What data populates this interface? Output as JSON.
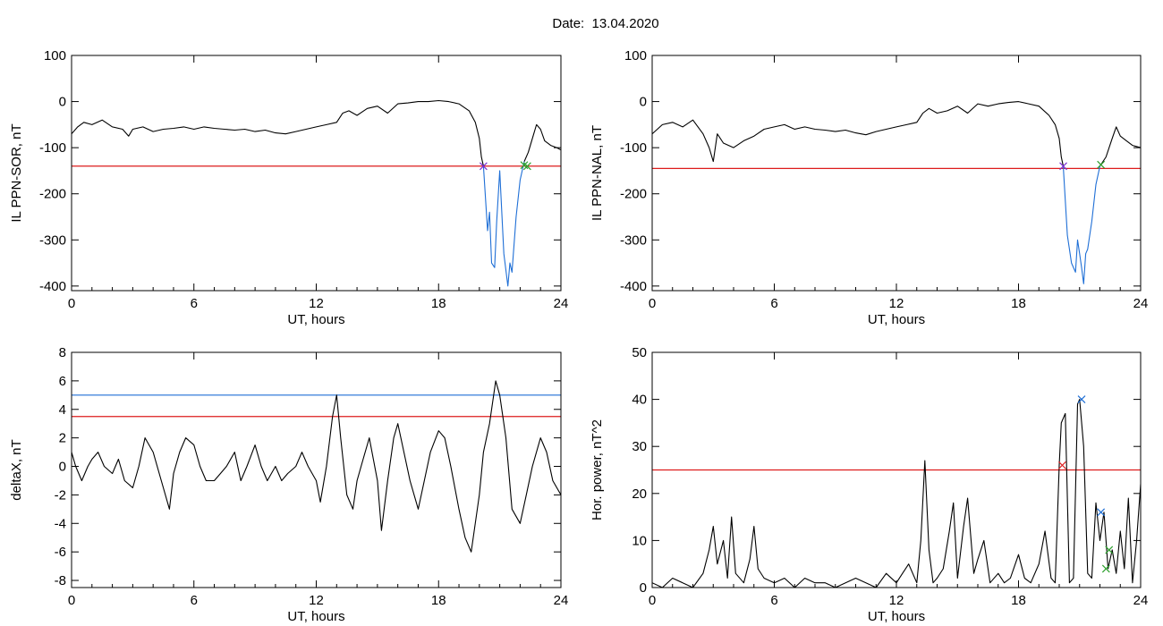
{
  "page_title": "Date:  13.04.2020",
  "colors": {
    "black": "#000000",
    "red": "#dd1c1c",
    "blue": "#1f6fd6",
    "green": "#2ca02c",
    "purple": "#7a2fd4"
  },
  "chart_data": [
    {
      "type": "line",
      "id": "sor",
      "xlabel": "UT, hours",
      "ylabel": "IL PPN-SOR, nT",
      "xlim": [
        0,
        24
      ],
      "ylim": [
        -410,
        100
      ],
      "xticks": [
        0,
        6,
        12,
        18,
        24
      ],
      "yticks": [
        100,
        0,
        -100,
        -200,
        -300,
        -400
      ],
      "threshold_lines": [
        {
          "color": "red",
          "y": -140
        }
      ],
      "series": [
        {
          "color": "black",
          "x": [
            0,
            0.3,
            0.6,
            1,
            1.5,
            2,
            2.5,
            2.8,
            3,
            3.5,
            4,
            4.5,
            5,
            5.5,
            6,
            6.5,
            7,
            7.5,
            8,
            8.5,
            9,
            9.5,
            10,
            10.5,
            11,
            11.5,
            12,
            12.5,
            13,
            13.3,
            13.6,
            14,
            14.5,
            15,
            15.5,
            16,
            16.5,
            17,
            17.5,
            18,
            18.5,
            19,
            19.5,
            19.8,
            20,
            20.1,
            20.2
          ],
          "y": [
            -70,
            -55,
            -45,
            -50,
            -40,
            -55,
            -60,
            -75,
            -60,
            -55,
            -65,
            -60,
            -58,
            -55,
            -60,
            -55,
            -58,
            -60,
            -62,
            -60,
            -65,
            -62,
            -68,
            -70,
            -65,
            -60,
            -55,
            -50,
            -45,
            -25,
            -20,
            -30,
            -15,
            -10,
            -25,
            -5,
            -3,
            0,
            0,
            2,
            0,
            -5,
            -20,
            -45,
            -80,
            -120,
            -140
          ]
        },
        {
          "color": "blue",
          "x": [
            20.2,
            20.4,
            20.5,
            20.6,
            20.75,
            20.85,
            21,
            21.2,
            21.4,
            21.5,
            21.6,
            21.8,
            22,
            22.2
          ],
          "y": [
            -140,
            -280,
            -240,
            -350,
            -360,
            -260,
            -150,
            -330,
            -400,
            -350,
            -370,
            -250,
            -170,
            -130
          ]
        },
        {
          "color": "black",
          "x": [
            22.2,
            22.4,
            22.6,
            22.8,
            23,
            23.2,
            23.5,
            23.8,
            24
          ],
          "y": [
            -130,
            -110,
            -80,
            -50,
            -60,
            -85,
            -95,
            -100,
            -105
          ]
        }
      ],
      "markers": [
        {
          "color": "purple",
          "x": 20.2,
          "y": -140
        },
        {
          "color": "green",
          "x": 22.2,
          "y": -138
        },
        {
          "color": "green",
          "x": 22.35,
          "y": -140
        }
      ]
    },
    {
      "type": "line",
      "id": "nal",
      "xlabel": "UT, hours",
      "ylabel": "IL PPN-NAL, nT",
      "xlim": [
        0,
        24
      ],
      "ylim": [
        -410,
        100
      ],
      "xticks": [
        0,
        6,
        12,
        18,
        24
      ],
      "yticks": [
        100,
        0,
        -100,
        -200,
        -300,
        -400
      ],
      "threshold_lines": [
        {
          "color": "red",
          "y": -145
        }
      ],
      "series": [
        {
          "color": "black",
          "x": [
            0,
            0.5,
            1,
            1.5,
            2,
            2.5,
            2.8,
            3,
            3.2,
            3.5,
            4,
            4.5,
            5,
            5.5,
            6,
            6.5,
            7,
            7.5,
            8,
            8.5,
            9,
            9.5,
            10,
            10.5,
            11,
            11.5,
            12,
            12.5,
            13,
            13.3,
            13.6,
            14,
            14.5,
            15,
            15.5,
            16,
            16.5,
            17,
            17.5,
            18,
            18.5,
            19,
            19.5,
            19.8,
            20,
            20.1,
            20.2
          ],
          "y": [
            -70,
            -50,
            -45,
            -55,
            -40,
            -70,
            -100,
            -130,
            -70,
            -90,
            -100,
            -85,
            -75,
            -60,
            -55,
            -50,
            -60,
            -55,
            -60,
            -62,
            -65,
            -62,
            -68,
            -72,
            -65,
            -60,
            -55,
            -50,
            -45,
            -25,
            -15,
            -25,
            -20,
            -10,
            -25,
            -5,
            -10,
            -5,
            -2,
            0,
            -5,
            -10,
            -30,
            -50,
            -80,
            -120,
            -140
          ]
        },
        {
          "color": "blue",
          "x": [
            20.2,
            20.4,
            20.6,
            20.8,
            20.9,
            21,
            21.1,
            21.2,
            21.3,
            21.4,
            21.6,
            21.8,
            22
          ],
          "y": [
            -140,
            -290,
            -350,
            -370,
            -300,
            -330,
            -360,
            -395,
            -330,
            -320,
            -260,
            -180,
            -140
          ]
        },
        {
          "color": "black",
          "x": [
            22,
            22.3,
            22.6,
            22.8,
            23,
            23.3,
            23.6,
            24
          ],
          "y": [
            -140,
            -120,
            -80,
            -55,
            -75,
            -85,
            -95,
            -100
          ]
        }
      ],
      "markers": [
        {
          "color": "purple",
          "x": 20.2,
          "y": -140
        },
        {
          "color": "green",
          "x": 22.05,
          "y": -137
        }
      ]
    },
    {
      "type": "line",
      "id": "deltax",
      "xlabel": "UT, hours",
      "ylabel": "deltaX, nT",
      "xlim": [
        0,
        24
      ],
      "ylim": [
        -8.5,
        8
      ],
      "xticks": [
        0,
        6,
        12,
        18,
        24
      ],
      "yticks": [
        8,
        6,
        4,
        2,
        0,
        -2,
        -4,
        -6,
        -8
      ],
      "threshold_lines": [
        {
          "color": "blue",
          "y": 5
        },
        {
          "color": "red",
          "y": 3.5
        }
      ],
      "series": [
        {
          "color": "black",
          "x": [
            0,
            0.2,
            0.5,
            0.8,
            1,
            1.3,
            1.6,
            2,
            2.3,
            2.6,
            3,
            3.3,
            3.6,
            4,
            4.4,
            4.8,
            5,
            5.3,
            5.6,
            6,
            6.3,
            6.6,
            7,
            7.3,
            7.6,
            8,
            8.3,
            8.6,
            9,
            9.3,
            9.6,
            10,
            10.3,
            10.6,
            11,
            11.3,
            11.6,
            12,
            12.2,
            12.5,
            12.8,
            13,
            13.2,
            13.5,
            13.8,
            14,
            14.3,
            14.6,
            15,
            15.2,
            15.5,
            15.8,
            16,
            16.3,
            16.6,
            17,
            17.3,
            17.6,
            18,
            18.3,
            18.6,
            19,
            19.3,
            19.6,
            20,
            20.2,
            20.5,
            20.8,
            21,
            21.3,
            21.6,
            22,
            22.3,
            22.6,
            23,
            23.3,
            23.6,
            24
          ],
          "y": [
            1,
            0,
            -1,
            0,
            0.5,
            1,
            0,
            -0.5,
            0.5,
            -1,
            -1.5,
            0,
            2,
            1,
            -1,
            -3,
            -0.5,
            1,
            2,
            1.5,
            0,
            -1,
            -1,
            -0.5,
            0,
            1,
            -1,
            0,
            1.5,
            0,
            -1,
            0,
            -1,
            -0.5,
            0,
            1,
            0,
            -1,
            -2.5,
            0,
            3.5,
            5,
            2,
            -2,
            -3,
            -1,
            0.5,
            2,
            -1,
            -4.5,
            -1,
            2,
            3,
            1,
            -1,
            -3,
            -1,
            1,
            2.5,
            2,
            0,
            -3,
            -5,
            -6,
            -2,
            1,
            3,
            6,
            5,
            2,
            -3,
            -4,
            -2,
            0,
            2,
            1,
            -1,
            -2
          ]
        }
      ],
      "markers": []
    },
    {
      "type": "line",
      "id": "power",
      "xlabel": "UT, hours",
      "ylabel": "Hor. power, nT^2",
      "xlim": [
        0,
        24
      ],
      "ylim": [
        0,
        50
      ],
      "xticks": [
        0,
        6,
        12,
        18,
        24
      ],
      "yticks": [
        50,
        40,
        30,
        20,
        10,
        0
      ],
      "threshold_lines": [
        {
          "color": "red",
          "y": 25
        }
      ],
      "series": [
        {
          "color": "black",
          "x": [
            0,
            0.5,
            1,
            1.5,
            2,
            2.5,
            2.8,
            3,
            3.2,
            3.5,
            3.7,
            3.9,
            4.1,
            4.5,
            4.8,
            5,
            5.2,
            5.5,
            6,
            6.5,
            7,
            7.5,
            8,
            8.5,
            9,
            9.5,
            10,
            10.5,
            11,
            11.5,
            12,
            12.3,
            12.6,
            13,
            13.2,
            13.4,
            13.6,
            13.8,
            14,
            14.3,
            14.6,
            14.8,
            15,
            15.3,
            15.5,
            15.8,
            16,
            16.3,
            16.6,
            17,
            17.3,
            17.6,
            18,
            18.3,
            18.6,
            19,
            19.3,
            19.6,
            19.8,
            20,
            20.1,
            20.3,
            20.5,
            20.7,
            20.9,
            21,
            21.2,
            21.4,
            21.6,
            21.8,
            22,
            22.2,
            22.4,
            22.6,
            22.8,
            23,
            23.2,
            23.4,
            23.6,
            23.8,
            24
          ],
          "y": [
            1,
            0,
            2,
            1,
            0,
            3,
            8,
            13,
            5,
            10,
            2,
            15,
            3,
            1,
            6,
            13,
            4,
            2,
            1,
            2,
            0,
            2,
            1,
            1,
            0,
            1,
            2,
            1,
            0,
            3,
            1,
            3,
            5,
            1,
            10,
            27,
            8,
            1,
            2,
            4,
            12,
            18,
            2,
            13,
            19,
            3,
            6,
            10,
            1,
            3,
            1,
            2,
            7,
            2,
            1,
            5,
            12,
            2,
            1,
            26,
            35,
            37,
            1,
            2,
            39,
            40,
            30,
            3,
            2,
            18,
            10,
            16,
            4,
            8,
            3,
            12,
            4,
            19,
            1,
            10,
            22
          ]
        }
      ],
      "markers": [
        {
          "color": "red",
          "x": 20.15,
          "y": 26
        },
        {
          "color": "blue",
          "x": 21.1,
          "y": 40
        },
        {
          "color": "blue",
          "x": 22.05,
          "y": 16
        },
        {
          "color": "green",
          "x": 22.45,
          "y": 8
        },
        {
          "color": "green",
          "x": 22.3,
          "y": 4
        }
      ]
    }
  ]
}
